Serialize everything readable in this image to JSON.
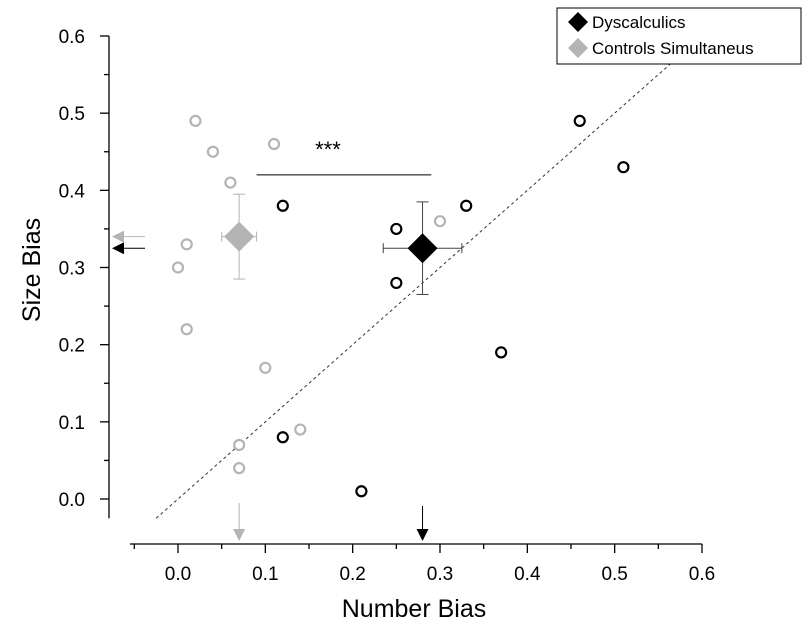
{
  "chart_data": {
    "type": "scatter",
    "xlabel": "Number Bias",
    "ylabel": "Size Bias",
    "xlim": [
      -0.055,
      0.6
    ],
    "ylim": [
      -0.025,
      0.6
    ],
    "x_ticks": [
      "0.0",
      "0.1",
      "0.2",
      "0.3",
      "0.4",
      "0.5",
      "0.6"
    ],
    "y_ticks": [
      "0.0",
      "0.1",
      "0.2",
      "0.3",
      "0.4",
      "0.5",
      "0.6"
    ],
    "legend_position": "top-right",
    "legend": [
      {
        "label": "Dyscalculics",
        "color": "#000000",
        "marker": "diamond"
      },
      {
        "label": "Controls Simultaneus",
        "color": "#b4b4b4",
        "marker": "diamond"
      }
    ],
    "series": [
      {
        "name": "Dyscalculics",
        "color": "#000000",
        "points": [
          [
            0.12,
            0.38
          ],
          [
            0.25,
            0.35
          ],
          [
            0.25,
            0.28
          ],
          [
            0.33,
            0.38
          ],
          [
            0.46,
            0.49
          ],
          [
            0.51,
            0.43
          ],
          [
            0.37,
            0.19
          ],
          [
            0.12,
            0.08
          ],
          [
            0.21,
            0.01
          ]
        ],
        "mean": {
          "x": 0.28,
          "y": 0.325,
          "x_err": 0.045,
          "y_err": 0.06
        },
        "marginal_x": 0.28,
        "marginal_y": 0.325
      },
      {
        "name": "Controls Simultaneus",
        "color": "#b4b4b4",
        "points": [
          [
            0.02,
            0.49
          ],
          [
            0.04,
            0.45
          ],
          [
            0.11,
            0.46
          ],
          [
            0.06,
            0.41
          ],
          [
            0.01,
            0.33
          ],
          [
            0.0,
            0.3
          ],
          [
            0.01,
            0.22
          ],
          [
            0.1,
            0.17
          ],
          [
            0.14,
            0.09
          ],
          [
            0.07,
            0.07
          ],
          [
            0.07,
            0.04
          ],
          [
            0.3,
            0.36
          ]
        ],
        "mean": {
          "x": 0.07,
          "y": 0.34,
          "x_err": 0.02,
          "y_err": 0.055
        },
        "marginal_x": 0.07,
        "marginal_y": 0.34
      }
    ],
    "diagonal": {
      "from": [
        -0.025,
        -0.025
      ],
      "to": [
        0.6,
        0.6
      ],
      "style": "dashed"
    },
    "annotation": {
      "text": "***",
      "x_from": 0.09,
      "x_to": 0.29,
      "y": 0.42
    }
  }
}
